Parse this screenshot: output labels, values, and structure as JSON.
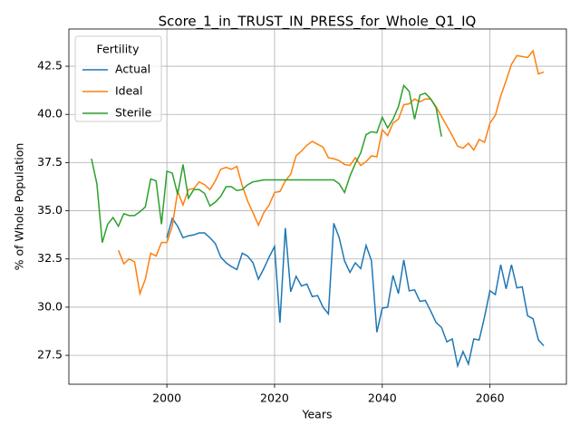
{
  "chart_data": {
    "type": "line",
    "title": "Score_1_in_TRUST_IN_PRESS_for_Whole_Q1_IQ",
    "x_label": "Years",
    "y_label": "% of Whole Population",
    "legend_title": "Fertility",
    "legend_position": "upper left",
    "grid": true,
    "xlim": [
      1981.8,
      2074.2
    ],
    "xticks": [
      2000,
      2020,
      2040,
      2060
    ],
    "ylim": [
      26.0,
      44.43
    ],
    "yticks": [
      27.5,
      {
        "value": 30,
        "label": "30.0"
      },
      32.5,
      {
        "value": 35,
        "label": "35.0"
      },
      37.5,
      {
        "value": 40,
        "label": "40.0"
      },
      42.5
    ],
    "x": [
      1986,
      1987,
      1988,
      1989,
      1990,
      1991,
      1992,
      1993,
      1994,
      1995,
      1996,
      1997,
      1998,
      1999,
      2000,
      2001,
      2002,
      2003,
      2004,
      2005,
      2006,
      2007,
      2008,
      2009,
      2010,
      2011,
      2012,
      2013,
      2014,
      2015,
      2016,
      2017,
      2018,
      2019,
      2020,
      2021,
      2022,
      2023,
      2024,
      2025,
      2026,
      2027,
      2028,
      2029,
      2030,
      2031,
      2032,
      2033,
      2034,
      2035,
      2036,
      2037,
      2038,
      2039,
      2040,
      2041,
      2042,
      2043,
      2044,
      2045,
      2046,
      2047,
      2048,
      2049,
      2050,
      2051,
      2052,
      2053,
      2054,
      2055,
      2056,
      2057,
      2058,
      2059,
      2060,
      2061,
      2062,
      2063,
      2064,
      2065,
      2066,
      2067,
      2068,
      2069,
      2070
    ],
    "series": [
      {
        "name": "Actual",
        "color": "#1f77b4",
        "values": [
          null,
          null,
          null,
          null,
          null,
          null,
          null,
          null,
          null,
          null,
          null,
          null,
          null,
          null,
          33.6,
          34.6,
          34.2,
          33.6,
          33.7,
          33.75,
          33.85,
          33.85,
          33.6,
          33.3,
          32.6,
          32.3,
          32.1,
          31.95,
          32.8,
          32.65,
          32.3,
          31.45,
          32.0,
          32.6,
          33.15,
          29.2,
          34.1,
          30.8,
          31.6,
          31.1,
          31.2,
          30.55,
          30.6,
          30.0,
          29.65,
          34.35,
          33.6,
          32.4,
          31.8,
          32.3,
          32.0,
          33.2,
          32.4,
          28.7,
          29.95,
          30.0,
          31.65,
          30.7,
          32.45,
          30.85,
          30.9,
          30.3,
          30.35,
          29.8,
          29.2,
          28.95,
          28.2,
          28.35,
          26.95,
          27.7,
          27.05,
          28.35,
          28.3,
          29.5,
          30.85,
          30.65,
          32.2,
          30.95,
          32.2,
          31.0,
          31.05,
          29.55,
          29.4,
          28.3,
          28.0
        ]
      },
      {
        "name": "Ideal",
        "color": "#ff7f0e",
        "values": [
          null,
          null,
          null,
          null,
          null,
          32.95,
          32.25,
          32.5,
          32.35,
          30.7,
          31.45,
          32.8,
          32.65,
          33.35,
          33.35,
          34.2,
          36.0,
          35.3,
          36.1,
          36.15,
          36.5,
          36.35,
          36.1,
          36.55,
          37.15,
          37.25,
          37.15,
          37.3,
          36.3,
          35.5,
          34.9,
          34.25,
          34.9,
          35.3,
          35.95,
          36.0,
          36.55,
          36.9,
          37.85,
          38.1,
          38.4,
          38.6,
          38.45,
          38.3,
          37.75,
          37.7,
          37.6,
          37.4,
          37.35,
          37.75,
          37.35,
          37.55,
          37.85,
          37.8,
          39.2,
          38.9,
          39.55,
          39.75,
          40.5,
          40.55,
          40.8,
          40.65,
          40.8,
          40.8,
          40.4,
          39.9,
          39.4,
          38.9,
          38.35,
          38.25,
          38.5,
          38.15,
          38.7,
          38.55,
          39.55,
          39.95,
          40.95,
          41.75,
          42.6,
          43.05,
          43.0,
          42.95,
          43.3,
          42.1,
          42.2
        ]
      },
      {
        "name": "Sterile",
        "color": "#2ca02c",
        "values": [
          37.7,
          36.4,
          33.35,
          34.3,
          34.65,
          34.2,
          34.85,
          34.75,
          34.75,
          34.95,
          35.2,
          36.65,
          36.55,
          34.3,
          37.05,
          36.95,
          35.85,
          37.4,
          35.65,
          36.1,
          36.1,
          35.9,
          35.25,
          35.45,
          35.75,
          36.25,
          36.25,
          36.05,
          36.1,
          36.35,
          36.5,
          36.55,
          36.6,
          36.6,
          36.6,
          36.6,
          36.6,
          36.6,
          36.6,
          36.6,
          36.6,
          36.6,
          36.6,
          36.6,
          36.6,
          36.6,
          36.4,
          35.95,
          36.8,
          37.45,
          38.0,
          38.95,
          39.1,
          39.05,
          39.85,
          39.3,
          39.75,
          40.4,
          41.5,
          41.2,
          39.75,
          41.0,
          41.1,
          40.8,
          40.35,
          38.85,
          null,
          null,
          null,
          null,
          null,
          null,
          null,
          null,
          null,
          null,
          null,
          null,
          null,
          null,
          null,
          null,
          null,
          null,
          null
        ]
      }
    ]
  }
}
